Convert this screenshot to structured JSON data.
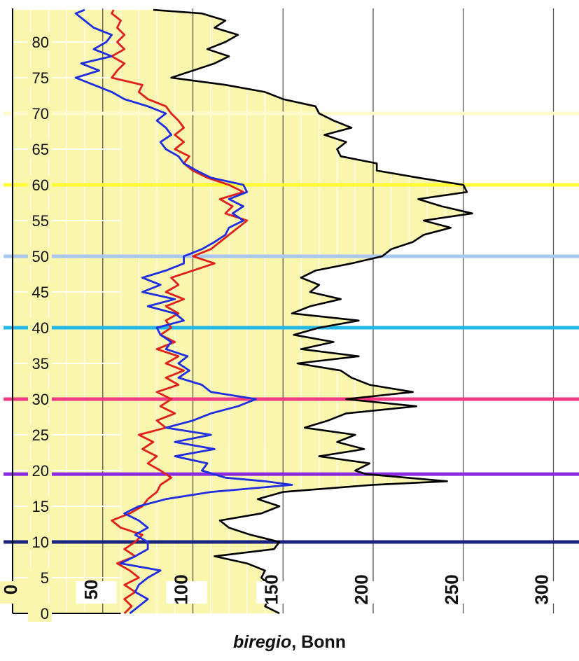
{
  "caption": {
    "italic": "biregio",
    "rest": ", Bonn"
  },
  "chart_data": {
    "type": "line",
    "orientation": "horizontal-value-axis",
    "xlabel": "biregio, Bonn",
    "xlim": [
      0,
      300
    ],
    "x_ticks": [
      "0",
      "50",
      "100",
      "150",
      "200",
      "250",
      "300"
    ],
    "ylim": [
      0,
      84
    ],
    "y_ticks": [
      "0",
      "5",
      "10",
      "15",
      "20",
      "25",
      "30",
      "35",
      "40",
      "45",
      "50",
      "55",
      "60",
      "65",
      "70",
      "75",
      "80"
    ],
    "grid": true,
    "colors": {
      "background_fill": "#fbf6ad",
      "black": "#000000",
      "blue": "#1f2fe0",
      "red": "#e0201a"
    },
    "horizontal_bands": [
      {
        "y": 10,
        "color": "#1a237e"
      },
      {
        "y": 19.5,
        "color": "#8a2be2"
      },
      {
        "y": 30,
        "color": "#ef3b83"
      },
      {
        "y": 40,
        "color": "#22b8e8"
      },
      {
        "y": 50,
        "color": "#a8c8f0"
      },
      {
        "y": 60,
        "color": "#ffff33"
      },
      {
        "y": 70,
        "color": "#fffacd"
      }
    ],
    "series": [
      {
        "color": "#000000",
        "fill": true,
        "points": [
          [
            148,
            0
          ],
          [
            140,
            1
          ],
          [
            142,
            2
          ],
          [
            136,
            3
          ],
          [
            142,
            4
          ],
          [
            138,
            5
          ],
          [
            140,
            6
          ],
          [
            130,
            7
          ],
          [
            112,
            8
          ],
          [
            145,
            9
          ],
          [
            148,
            10
          ],
          [
            132,
            11
          ],
          [
            120,
            12
          ],
          [
            115,
            13
          ],
          [
            138,
            14
          ],
          [
            148,
            15
          ],
          [
            136,
            16
          ],
          [
            150,
            17
          ],
          [
            200,
            18
          ],
          [
            241,
            18.5
          ],
          [
            196,
            19.5
          ],
          [
            190,
            20
          ],
          [
            198,
            21
          ],
          [
            170,
            22
          ],
          [
            195,
            23
          ],
          [
            180,
            24
          ],
          [
            190,
            25
          ],
          [
            162,
            26
          ],
          [
            175,
            27
          ],
          [
            185,
            28
          ],
          [
            224,
            29
          ],
          [
            185,
            30
          ],
          [
            222,
            31
          ],
          [
            198,
            32
          ],
          [
            188,
            33
          ],
          [
            182,
            34
          ],
          [
            158,
            35
          ],
          [
            192,
            36
          ],
          [
            160,
            37
          ],
          [
            178,
            38
          ],
          [
            156,
            39
          ],
          [
            170,
            40
          ],
          [
            192,
            41
          ],
          [
            155,
            42
          ],
          [
            165,
            43
          ],
          [
            182,
            44
          ],
          [
            165,
            45
          ],
          [
            170,
            46
          ],
          [
            160,
            47
          ],
          [
            168,
            48
          ],
          [
            188,
            49
          ],
          [
            205,
            50
          ],
          [
            210,
            51
          ],
          [
            222,
            52
          ],
          [
            228,
            53
          ],
          [
            243,
            54
          ],
          [
            228,
            55
          ],
          [
            255,
            56
          ],
          [
            238,
            57
          ],
          [
            225,
            58
          ],
          [
            252,
            59
          ],
          [
            250,
            60
          ],
          [
            225,
            61
          ],
          [
            202,
            62
          ],
          [
            202,
            63
          ],
          [
            182,
            64
          ],
          [
            180,
            65
          ],
          [
            185,
            66
          ],
          [
            173,
            67
          ],
          [
            188,
            68
          ],
          [
            178,
            69
          ],
          [
            170,
            70
          ],
          [
            168,
            71
          ],
          [
            150,
            72
          ],
          [
            140,
            73
          ],
          [
            118,
            74
          ],
          [
            88,
            75
          ],
          [
            100,
            76
          ],
          [
            112,
            77
          ],
          [
            120,
            78
          ],
          [
            108,
            79
          ],
          [
            118,
            80
          ],
          [
            125,
            81
          ],
          [
            112,
            82
          ],
          [
            118,
            83
          ],
          [
            105,
            84
          ],
          [
            78,
            84.5
          ]
        ]
      },
      {
        "color": "#1f2fe0",
        "fill": false,
        "points": [
          [
            65,
            0
          ],
          [
            70,
            1
          ],
          [
            75,
            2
          ],
          [
            68,
            3
          ],
          [
            70,
            4
          ],
          [
            75,
            5
          ],
          [
            82,
            6
          ],
          [
            60,
            7
          ],
          [
            68,
            8
          ],
          [
            75,
            9
          ],
          [
            75,
            10
          ],
          [
            68,
            11
          ],
          [
            75,
            12
          ],
          [
            70,
            13
          ],
          [
            62,
            14
          ],
          [
            70,
            15
          ],
          [
            85,
            16
          ],
          [
            110,
            17
          ],
          [
            155,
            18
          ],
          [
            140,
            18.5
          ],
          [
            118,
            19
          ],
          [
            105,
            20
          ],
          [
            108,
            21
          ],
          [
            90,
            22
          ],
          [
            112,
            23
          ],
          [
            90,
            24
          ],
          [
            110,
            25
          ],
          [
            85,
            26
          ],
          [
            100,
            27
          ],
          [
            110,
            28
          ],
          [
            125,
            29
          ],
          [
            135,
            30
          ],
          [
            110,
            31
          ],
          [
            105,
            32
          ],
          [
            92,
            33
          ],
          [
            98,
            34
          ],
          [
            92,
            35
          ],
          [
            97,
            36
          ],
          [
            85,
            37
          ],
          [
            88,
            38
          ],
          [
            82,
            39
          ],
          [
            80,
            40
          ],
          [
            95,
            41
          ],
          [
            90,
            42
          ],
          [
            75,
            43
          ],
          [
            90,
            44
          ],
          [
            72,
            45
          ],
          [
            82,
            46
          ],
          [
            72,
            47
          ],
          [
            85,
            48
          ],
          [
            95,
            49
          ],
          [
            95,
            50
          ],
          [
            105,
            51
          ],
          [
            112,
            52
          ],
          [
            118,
            53
          ],
          [
            120,
            54
          ],
          [
            128,
            55
          ],
          [
            122,
            56
          ],
          [
            128,
            57
          ],
          [
            120,
            58
          ],
          [
            130,
            59
          ],
          [
            128,
            60
          ],
          [
            110,
            61
          ],
          [
            102,
            62
          ],
          [
            95,
            63
          ],
          [
            92,
            64
          ],
          [
            85,
            65
          ],
          [
            82,
            66
          ],
          [
            88,
            67
          ],
          [
            85,
            68
          ],
          [
            80,
            69
          ],
          [
            85,
            70
          ],
          [
            75,
            71
          ],
          [
            62,
            72
          ],
          [
            55,
            73
          ],
          [
            45,
            74
          ],
          [
            35,
            75
          ],
          [
            48,
            76
          ],
          [
            38,
            77
          ],
          [
            55,
            78
          ],
          [
            45,
            79
          ],
          [
            52,
            80
          ],
          [
            55,
            81
          ],
          [
            45,
            82
          ],
          [
            40,
            83
          ],
          [
            35,
            84
          ],
          [
            40,
            84.5
          ]
        ]
      },
      {
        "color": "#e0201a",
        "fill": false,
        "points": [
          [
            62,
            0
          ],
          [
            66,
            1
          ],
          [
            62,
            2
          ],
          [
            68,
            3
          ],
          [
            62,
            4
          ],
          [
            70,
            5
          ],
          [
            65,
            6
          ],
          [
            58,
            7
          ],
          [
            68,
            8
          ],
          [
            62,
            9
          ],
          [
            68,
            10
          ],
          [
            72,
            11
          ],
          [
            60,
            12
          ],
          [
            55,
            13
          ],
          [
            65,
            14
          ],
          [
            72,
            15
          ],
          [
            75,
            16
          ],
          [
            80,
            17
          ],
          [
            82,
            18
          ],
          [
            88,
            19
          ],
          [
            82,
            20
          ],
          [
            75,
            21
          ],
          [
            80,
            22
          ],
          [
            72,
            23
          ],
          [
            78,
            24
          ],
          [
            70,
            25
          ],
          [
            85,
            26
          ],
          [
            80,
            27
          ],
          [
            90,
            28
          ],
          [
            82,
            29
          ],
          [
            88,
            30
          ],
          [
            80,
            31
          ],
          [
            92,
            32
          ],
          [
            85,
            33
          ],
          [
            95,
            34
          ],
          [
            85,
            35
          ],
          [
            92,
            36
          ],
          [
            80,
            37
          ],
          [
            90,
            38
          ],
          [
            82,
            39
          ],
          [
            88,
            40
          ],
          [
            85,
            41
          ],
          [
            92,
            42
          ],
          [
            85,
            43
          ],
          [
            95,
            44
          ],
          [
            85,
            45
          ],
          [
            92,
            46
          ],
          [
            88,
            47
          ],
          [
            100,
            48
          ],
          [
            112,
            49
          ],
          [
            100,
            50
          ],
          [
            110,
            51
          ],
          [
            115,
            52
          ],
          [
            120,
            53
          ],
          [
            125,
            54
          ],
          [
            130,
            55
          ],
          [
            118,
            56
          ],
          [
            122,
            57
          ],
          [
            115,
            58
          ],
          [
            128,
            59
          ],
          [
            120,
            60
          ],
          [
            108,
            61
          ],
          [
            100,
            62
          ],
          [
            95,
            63
          ],
          [
            98,
            64
          ],
          [
            90,
            65
          ],
          [
            95,
            66
          ],
          [
            90,
            67
          ],
          [
            95,
            68
          ],
          [
            92,
            69
          ],
          [
            88,
            70
          ],
          [
            85,
            71
          ],
          [
            75,
            72
          ],
          [
            70,
            73
          ],
          [
            72,
            74
          ],
          [
            55,
            75
          ],
          [
            58,
            76
          ],
          [
            62,
            77
          ],
          [
            55,
            78
          ],
          [
            62,
            79
          ],
          [
            58,
            80
          ],
          [
            62,
            81
          ],
          [
            58,
            82
          ],
          [
            60,
            83
          ],
          [
            55,
            84
          ],
          [
            56,
            84.5
          ]
        ]
      }
    ]
  }
}
